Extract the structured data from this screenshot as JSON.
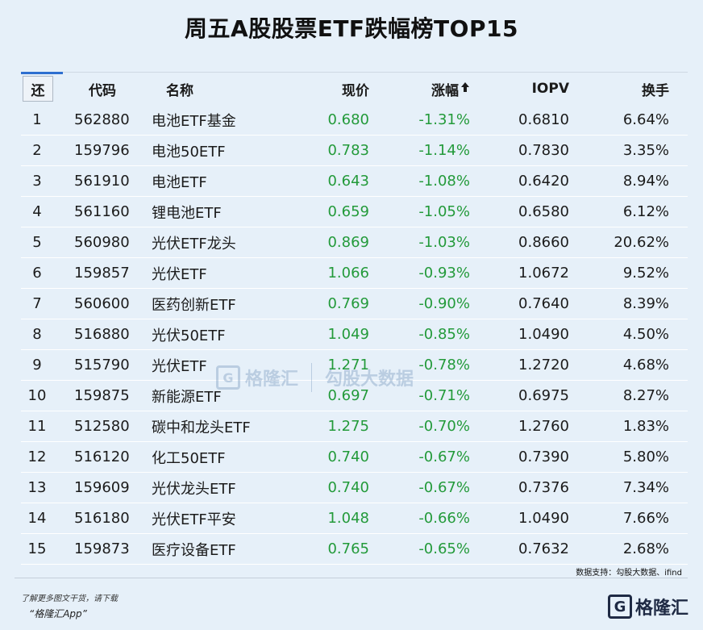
{
  "title": "周五A股股票ETF跌幅榜TOP15",
  "headers": {
    "rank": "还",
    "code": "代码",
    "name": "名称",
    "price": "现价",
    "change": "涨幅",
    "iopv": "IOPV",
    "turnover": "换手"
  },
  "rows": [
    {
      "rank": "1",
      "code": "562880",
      "name": "电池ETF基金",
      "price": "0.680",
      "change": "-1.31%",
      "iopv": "0.6810",
      "turnover": "6.64%"
    },
    {
      "rank": "2",
      "code": "159796",
      "name": "电池50ETF",
      "price": "0.783",
      "change": "-1.14%",
      "iopv": "0.7830",
      "turnover": "3.35%"
    },
    {
      "rank": "3",
      "code": "561910",
      "name": "电池ETF",
      "price": "0.643",
      "change": "-1.08%",
      "iopv": "0.6420",
      "turnover": "8.94%"
    },
    {
      "rank": "4",
      "code": "561160",
      "name": "锂电池ETF",
      "price": "0.659",
      "change": "-1.05%",
      "iopv": "0.6580",
      "turnover": "6.12%"
    },
    {
      "rank": "5",
      "code": "560980",
      "name": "光伏ETF龙头",
      "price": "0.869",
      "change": "-1.03%",
      "iopv": "0.8660",
      "turnover": "20.62%"
    },
    {
      "rank": "6",
      "code": "159857",
      "name": "光伏ETF",
      "price": "1.066",
      "change": "-0.93%",
      "iopv": "1.0672",
      "turnover": "9.52%"
    },
    {
      "rank": "7",
      "code": "560600",
      "name": "医药创新ETF",
      "price": "0.769",
      "change": "-0.90%",
      "iopv": "0.7640",
      "turnover": "8.39%"
    },
    {
      "rank": "8",
      "code": "516880",
      "name": "光伏50ETF",
      "price": "1.049",
      "change": "-0.85%",
      "iopv": "1.0490",
      "turnover": "4.50%"
    },
    {
      "rank": "9",
      "code": "515790",
      "name": "光伏ETF",
      "price": "1.271",
      "change": "-0.78%",
      "iopv": "1.2720",
      "turnover": "4.68%"
    },
    {
      "rank": "10",
      "code": "159875",
      "name": "新能源ETF",
      "price": "0.697",
      "change": "-0.71%",
      "iopv": "0.6975",
      "turnover": "8.27%"
    },
    {
      "rank": "11",
      "code": "512580",
      "name": "碳中和龙头ETF",
      "price": "1.275",
      "change": "-0.70%",
      "iopv": "1.2760",
      "turnover": "1.83%"
    },
    {
      "rank": "12",
      "code": "516120",
      "name": "化工50ETF",
      "price": "0.740",
      "change": "-0.67%",
      "iopv": "0.7390",
      "turnover": "5.80%"
    },
    {
      "rank": "13",
      "code": "159609",
      "name": "光伏龙头ETF",
      "price": "0.740",
      "change": "-0.67%",
      "iopv": "0.7376",
      "turnover": "7.34%"
    },
    {
      "rank": "14",
      "code": "516180",
      "name": "光伏ETF平安",
      "price": "1.048",
      "change": "-0.66%",
      "iopv": "1.0490",
      "turnover": "7.66%"
    },
    {
      "rank": "15",
      "code": "159873",
      "name": "医疗设备ETF",
      "price": "0.765",
      "change": "-0.65%",
      "iopv": "0.7632",
      "turnover": "2.68%"
    }
  ],
  "source": "数据支持：勾股大数据、ifind",
  "footer": {
    "note": "了解更多图文干货，请下载",
    "app": "“格隆汇App”",
    "logo_text": "格隆汇"
  },
  "watermark": {
    "brand": "格隆汇",
    "partner": "勾股大数据"
  },
  "colors": {
    "background": "#e6f0f9",
    "positive_text": "#239a3a",
    "accent": "#2e6fd0"
  },
  "icons": {
    "sort": "arrow-up-icon",
    "logo": "gelonghui-logo-icon"
  }
}
